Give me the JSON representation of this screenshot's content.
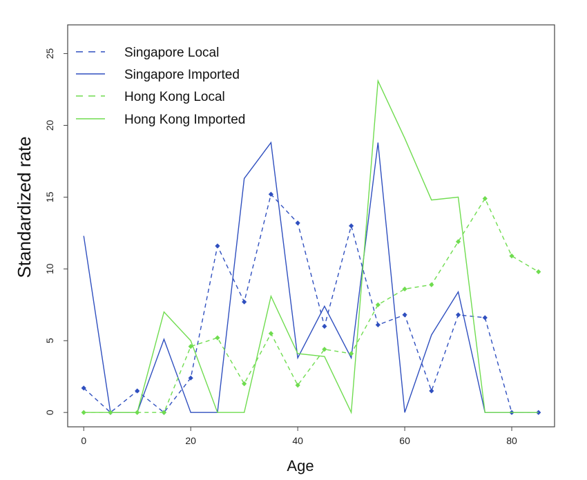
{
  "chart_data": {
    "type": "line",
    "xlabel": "Age",
    "ylabel": "Standardized rate",
    "xlim": [
      -3,
      88
    ],
    "ylim": [
      -1,
      27
    ],
    "x_ticks": [
      0,
      20,
      40,
      60,
      80
    ],
    "y_ticks": [
      0,
      5,
      10,
      15,
      20,
      25
    ],
    "grid": false,
    "legend_position": "top-left",
    "x": [
      0,
      5,
      10,
      15,
      20,
      25,
      30,
      35,
      40,
      45,
      50,
      55,
      60,
      65,
      70,
      75,
      80,
      85
    ],
    "series": [
      {
        "name": "Singapore Local",
        "color": "#2f4fbf",
        "dash": true,
        "markers": true,
        "values": [
          1.7,
          0,
          1.5,
          0,
          2.4,
          11.6,
          7.7,
          15.2,
          13.2,
          6.0,
          13.0,
          6.1,
          6.8,
          1.5,
          6.8,
          6.6,
          0,
          0
        ]
      },
      {
        "name": "Singapore Imported",
        "color": "#2f4fbf",
        "dash": false,
        "markers": false,
        "values": [
          12.3,
          0,
          0,
          5.1,
          0,
          0,
          16.3,
          18.8,
          3.8,
          7.4,
          3.8,
          18.8,
          0,
          5.4,
          8.4,
          0,
          0,
          0
        ]
      },
      {
        "name": "Hong Kong Local",
        "color": "#6fdc4f",
        "dash": true,
        "markers": true,
        "values": [
          0,
          0,
          0,
          0,
          4.6,
          5.2,
          2.0,
          5.5,
          1.9,
          4.4,
          4.1,
          7.5,
          8.6,
          8.9,
          11.9,
          14.9,
          10.9,
          9.8
        ]
      },
      {
        "name": "Hong Kong Imported",
        "color": "#6fdc4f",
        "dash": false,
        "markers": false,
        "values": [
          0,
          0,
          0,
          7.0,
          5.0,
          0,
          0,
          8.1,
          4.1,
          3.9,
          0,
          23.1,
          19.1,
          14.8,
          15.0,
          0,
          0,
          0
        ]
      }
    ]
  }
}
